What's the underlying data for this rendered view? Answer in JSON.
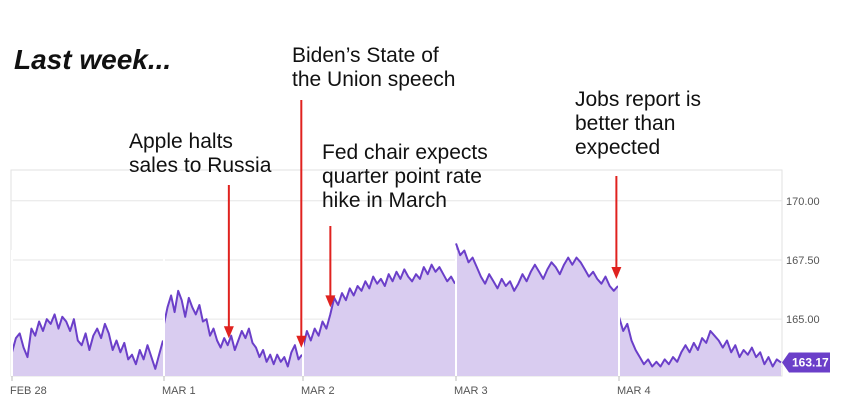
{
  "headline": "Last week...",
  "chart_data": {
    "type": "area",
    "title": "",
    "xlabel": "",
    "ylabel": "",
    "x_ticks": [
      "FEB 28",
      "MAR 1",
      "MAR 2",
      "MAR 3",
      "MAR 4"
    ],
    "y_ticks": [
      "170.00",
      "167.50",
      "165.00"
    ],
    "ylim": [
      162.6,
      171.3
    ],
    "grid": true,
    "last_price": "163.17",
    "colors": {
      "line": "#6b3fc9",
      "fill": "#d9ccf0",
      "badge": "#6b3fc9",
      "arrow": "#e0221f"
    },
    "sessions": [
      {
        "date": "FEB 28",
        "prices": [
          163.6,
          164.2,
          164.4,
          163.8,
          163.4,
          164.6,
          164.3,
          164.9,
          164.5,
          165.0,
          164.8,
          165.2,
          164.6,
          165.1,
          164.9,
          164.5,
          165.0,
          164.1,
          163.9,
          164.4,
          163.7,
          164.3,
          164.6,
          164.2,
          164.8,
          164.4,
          163.7,
          164.1,
          163.6,
          164.0,
          163.3,
          163.5,
          163.1,
          163.7,
          163.3,
          163.9,
          163.4,
          162.9,
          163.5,
          164.1
        ]
      },
      {
        "date": "MAR 1",
        "prices": [
          164.8,
          165.5,
          166.0,
          165.3,
          166.2,
          165.8,
          165.1,
          165.9,
          165.5,
          165.2,
          165.6,
          164.9,
          165.0,
          164.3,
          164.6,
          164.1,
          163.8,
          164.2,
          163.9,
          164.3,
          163.7,
          164.1,
          164.5,
          164.2,
          164.6,
          164.0,
          163.8,
          163.4,
          163.7,
          163.2,
          163.5,
          163.1,
          163.5,
          163.2,
          163.4,
          163.0,
          163.6,
          163.9,
          163.3,
          163.5
        ]
      },
      {
        "date": "MAR 2",
        "prices": [
          163.8,
          164.5,
          164.1,
          164.6,
          164.3,
          164.9,
          164.6,
          165.2,
          165.9,
          165.6,
          166.1,
          165.8,
          166.3,
          166.0,
          166.4,
          166.2,
          166.6,
          166.3,
          166.8,
          166.5,
          166.7,
          166.4,
          166.9,
          166.6,
          167.0,
          166.7,
          167.1,
          166.8,
          166.6,
          166.9,
          166.7,
          167.2,
          166.9,
          167.3,
          167.0,
          167.2,
          166.9,
          166.6,
          166.8,
          166.5
        ]
      },
      {
        "date": "MAR 3",
        "prices": [
          168.2,
          167.7,
          167.9,
          167.4,
          167.6,
          167.2,
          166.8,
          166.5,
          166.9,
          166.6,
          166.3,
          166.7,
          166.4,
          166.6,
          166.2,
          166.5,
          166.9,
          166.6,
          167.0,
          167.3,
          167.0,
          166.7,
          167.1,
          167.4,
          167.2,
          166.9,
          167.3,
          167.6,
          167.3,
          167.6,
          167.4,
          167.1,
          166.8,
          167.0,
          166.7,
          166.5,
          166.8,
          166.4,
          166.2,
          166.4
        ]
      },
      {
        "date": "MAR 4",
        "prices": [
          165.1,
          164.5,
          164.8,
          164.1,
          163.7,
          163.4,
          163.1,
          163.3,
          163.0,
          163.2,
          163.0,
          163.3,
          163.1,
          163.4,
          163.2,
          163.6,
          163.9,
          163.6,
          164.0,
          163.7,
          164.2,
          164.0,
          164.5,
          164.3,
          164.1,
          163.8,
          164.1,
          163.6,
          163.9,
          163.4,
          163.7,
          163.5,
          163.8,
          163.4,
          163.6,
          163.1,
          163.4,
          163.0,
          163.3,
          163.17
        ]
      }
    ],
    "annotations": [
      {
        "lines": [
          "Apple halts",
          "sales to Russia"
        ],
        "session": 1,
        "at": 0.47
      },
      {
        "lines": [
          "Biden’s State of",
          "the Union speech"
        ],
        "session": 1,
        "at": 0.995
      },
      {
        "lines": [
          "Fed chair expects",
          "quarter point rate",
          "hike in March"
        ],
        "session": 2,
        "at": 0.18
      },
      {
        "lines": [
          "Jobs report is",
          "better than",
          "expected"
        ],
        "session": 3,
        "at": 0.99
      }
    ]
  }
}
